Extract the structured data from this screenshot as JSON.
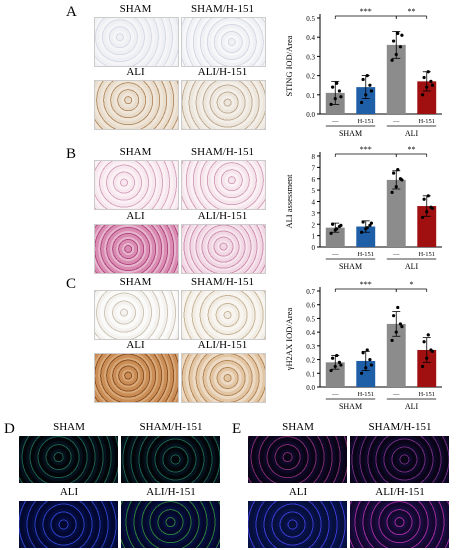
{
  "panels": {
    "A": {
      "letter": "A",
      "labels": [
        "SHAM",
        "SHAM/H-151",
        "ALI",
        "ALI/H-151"
      ]
    },
    "B": {
      "letter": "B",
      "labels": [
        "SHAM",
        "SHAM/H-151",
        "ALI",
        "ALI/H-151"
      ]
    },
    "C": {
      "letter": "C",
      "labels": [
        "SHAM",
        "SHAM/H-151",
        "ALI",
        "ALI/H-151"
      ]
    },
    "D": {
      "letter": "D",
      "labels": [
        "SHAM",
        "SHAM/H-151",
        "ALI",
        "ALI/H-151"
      ]
    },
    "E": {
      "letter": "E",
      "labels": [
        "SHAM",
        "SHAM/H-151",
        "ALI",
        "ALI/H-151"
      ]
    }
  },
  "colors": {
    "sham_bar": "#888888",
    "sham_h151_bar": "#1f5fa8",
    "ali_bar": "#8c8c8c",
    "ali_h151_bar": "#a01010"
  },
  "chart_data": [
    {
      "type": "bar",
      "ylabel": "STING IOD/Area",
      "ylim": [
        0,
        0.5
      ],
      "yticks": [
        "0.0",
        "0.1",
        "0.2",
        "0.3",
        "0.4",
        "0.5"
      ],
      "categories": [
        "—",
        "H-151",
        "—",
        "H-151"
      ],
      "groups": [
        "SHAM",
        "ALI"
      ],
      "values": [
        0.11,
        0.14,
        0.36,
        0.17
      ],
      "errors": [
        0.06,
        0.06,
        0.07,
        0.05
      ],
      "points": [
        [
          0.05,
          0.08,
          0.12,
          0.14,
          0.16,
          0.09
        ],
        [
          0.06,
          0.1,
          0.15,
          0.18,
          0.2,
          0.12
        ],
        [
          0.28,
          0.31,
          0.35,
          0.38,
          0.42,
          0.41
        ],
        [
          0.1,
          0.14,
          0.17,
          0.19,
          0.22,
          0.15
        ]
      ],
      "annotations": [
        {
          "from": 0,
          "to": 2,
          "label": "***"
        },
        {
          "from": 2,
          "to": 3,
          "label": "**"
        }
      ]
    },
    {
      "type": "bar",
      "ylabel": "ALI assessment",
      "ylim": [
        0,
        8
      ],
      "yticks": [
        "0",
        "1",
        "2",
        "3",
        "4",
        "5",
        "6",
        "7",
        "8"
      ],
      "categories": [
        "—",
        "H-151",
        "—",
        "H-151"
      ],
      "groups": [
        "SHAM",
        "ALI"
      ],
      "values": [
        1.7,
        1.8,
        5.9,
        3.6
      ],
      "errors": [
        0.4,
        0.5,
        0.8,
        0.9
      ],
      "points": [
        [
          1.2,
          1.5,
          1.8,
          2.0,
          1.6,
          1.9
        ],
        [
          1.3,
          1.6,
          1.9,
          2.2,
          1.7,
          2.1
        ],
        [
          4.8,
          5.3,
          6.0,
          6.5,
          6.8,
          5.9
        ],
        [
          2.6,
          3.1,
          3.5,
          4.2,
          4.5,
          3.4
        ]
      ],
      "annotations": [
        {
          "from": 0,
          "to": 2,
          "label": "***"
        },
        {
          "from": 2,
          "to": 3,
          "label": "**"
        }
      ]
    },
    {
      "type": "bar",
      "ylabel": "γH2AX IOD/Area",
      "ylim": [
        0,
        0.7
      ],
      "yticks": [
        "0.0",
        "0.1",
        "0.2",
        "0.3",
        "0.4",
        "0.5",
        "0.6",
        "0.7"
      ],
      "categories": [
        "—",
        "H-151",
        "—",
        "H-151"
      ],
      "groups": [
        "SHAM",
        "ALI"
      ],
      "values": [
        0.18,
        0.19,
        0.46,
        0.27
      ],
      "errors": [
        0.05,
        0.07,
        0.09,
        0.09
      ],
      "points": [
        [
          0.12,
          0.15,
          0.18,
          0.21,
          0.23,
          0.16
        ],
        [
          0.1,
          0.14,
          0.2,
          0.25,
          0.27,
          0.16
        ],
        [
          0.34,
          0.4,
          0.46,
          0.52,
          0.58,
          0.44
        ],
        [
          0.15,
          0.21,
          0.27,
          0.33,
          0.38,
          0.26
        ]
      ],
      "annotations": [
        {
          "from": 0,
          "to": 2,
          "label": "***"
        },
        {
          "from": 2,
          "to": 3,
          "label": "*"
        }
      ]
    }
  ]
}
